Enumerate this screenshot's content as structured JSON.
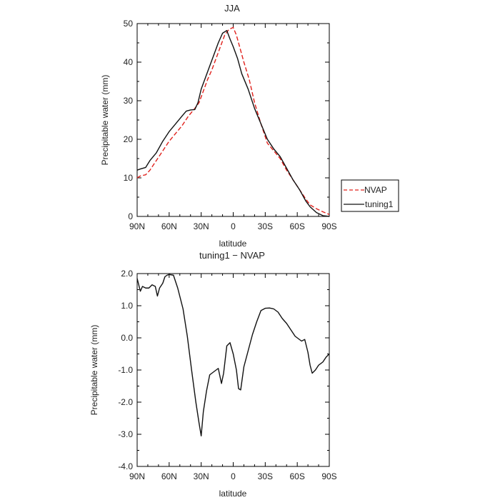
{
  "chart_data": [
    {
      "type": "line",
      "title": "JJA",
      "xlabel": "latitude",
      "ylabel": "Precipitable water (mm)",
      "xlim": [
        90,
        -90
      ],
      "ylim": [
        0,
        50
      ],
      "x_ticks": [
        90,
        60,
        30,
        0,
        -30,
        -60,
        -90
      ],
      "x_tick_labels": [
        "90N",
        "60N",
        "30N",
        "0",
        "30S",
        "60S",
        "90S"
      ],
      "y_ticks": [
        0,
        10,
        20,
        30,
        40,
        50
      ],
      "y_tick_labels": [
        "0",
        "10",
        "20",
        "30",
        "40",
        "50"
      ],
      "legend_position": "right",
      "grid": false,
      "series": [
        {
          "name": "NVAP",
          "color": "#e0201b",
          "dash": "dashed",
          "points": [
            [
              90,
              10
            ],
            [
              87,
              10.5
            ],
            [
              82,
              10.8
            ],
            [
              78,
              12
            ],
            [
              72,
              14.5
            ],
            [
              66,
              17
            ],
            [
              60,
              19.5
            ],
            [
              54,
              21.5
            ],
            [
              48,
              23.5
            ],
            [
              42,
              26
            ],
            [
              36,
              28
            ],
            [
              32,
              29.5
            ],
            [
              28,
              32.5
            ],
            [
              24,
              35.5
            ],
            [
              20,
              38
            ],
            [
              16,
              41
            ],
            [
              12,
              44
            ],
            [
              8,
              47
            ],
            [
              4,
              48.5
            ],
            [
              0,
              49
            ],
            [
              -3,
              47
            ],
            [
              -6,
              44
            ],
            [
              -10,
              40
            ],
            [
              -15,
              35.5
            ],
            [
              -20,
              29.5
            ],
            [
              -26,
              24
            ],
            [
              -32,
              19
            ],
            [
              -38,
              17
            ],
            [
              -44,
              15
            ],
            [
              -50,
              12
            ],
            [
              -56,
              9.5
            ],
            [
              -62,
              7
            ],
            [
              -68,
              4.5
            ],
            [
              -72,
              3
            ],
            [
              -78,
              2
            ],
            [
              -84,
              1.2
            ],
            [
              -90,
              0.5
            ]
          ]
        },
        {
          "name": "tuning1",
          "color": "#111111",
          "dash": "solid",
          "points": [
            [
              90,
              12
            ],
            [
              87,
              12.3
            ],
            [
              82,
              12.7
            ],
            [
              78,
              14.5
            ],
            [
              72,
              16.5
            ],
            [
              66,
              19.5
            ],
            [
              60,
              22
            ],
            [
              54,
              24
            ],
            [
              48,
              26
            ],
            [
              44,
              27.3
            ],
            [
              40,
              27.6
            ],
            [
              36,
              27.7
            ],
            [
              33,
              29.5
            ],
            [
              30,
              33
            ],
            [
              26,
              36
            ],
            [
              22,
              39
            ],
            [
              18,
              42
            ],
            [
              14,
              45
            ],
            [
              10,
              47.5
            ],
            [
              6,
              48.2
            ],
            [
              3,
              46
            ],
            [
              0,
              44
            ],
            [
              -4,
              41
            ],
            [
              -8,
              37
            ],
            [
              -14,
              33
            ],
            [
              -20,
              28
            ],
            [
              -26,
              24
            ],
            [
              -32,
              20
            ],
            [
              -38,
              17.5
            ],
            [
              -44,
              15.5
            ],
            [
              -50,
              12.5
            ],
            [
              -56,
              9.5
            ],
            [
              -62,
              7
            ],
            [
              -68,
              4
            ],
            [
              -72,
              2.5
            ],
            [
              -78,
              1
            ],
            [
              -84,
              0.2
            ],
            [
              -90,
              0
            ]
          ]
        }
      ]
    },
    {
      "type": "line",
      "title": "tuning1 − NVAP",
      "xlabel": "latitude",
      "ylabel": "Precipitable water (mm)",
      "xlim": [
        90,
        -90
      ],
      "ylim": [
        -4,
        2
      ],
      "x_ticks": [
        90,
        60,
        30,
        0,
        -30,
        -60,
        -90
      ],
      "x_tick_labels": [
        "90N",
        "60N",
        "30N",
        "0",
        "30S",
        "60S",
        "90S"
      ],
      "y_ticks": [
        2,
        1,
        0,
        -1,
        -2,
        -3,
        -4
      ],
      "y_tick_labels": [
        "2.0",
        "1.0",
        "0.0",
        "-1.0",
        "-2.0",
        "-3.0",
        "-4.0"
      ],
      "grid": false,
      "series": [
        {
          "color": "#111111",
          "dash": "solid",
          "points": [
            [
              90,
              1.85
            ],
            [
              87,
              1.45
            ],
            [
              85,
              1.6
            ],
            [
              82,
              1.55
            ],
            [
              79,
              1.55
            ],
            [
              76,
              1.65
            ],
            [
              73,
              1.6
            ],
            [
              71,
              1.3
            ],
            [
              69,
              1.55
            ],
            [
              66,
              1.7
            ],
            [
              64,
              1.9
            ],
            [
              62,
              1.95
            ],
            [
              60,
              1.97
            ],
            [
              56,
              1.95
            ],
            [
              52,
              1.55
            ],
            [
              47,
              0.9
            ],
            [
              43,
              0.05
            ],
            [
              39,
              -1.0
            ],
            [
              35,
              -2.0
            ],
            [
              32,
              -2.65
            ],
            [
              30,
              -3.05
            ],
            [
              28,
              -2.3
            ],
            [
              25,
              -1.65
            ],
            [
              22,
              -1.15
            ],
            [
              18,
              -1.05
            ],
            [
              14,
              -0.95
            ],
            [
              11,
              -1.42
            ],
            [
              9,
              -1.1
            ],
            [
              6,
              -0.25
            ],
            [
              3,
              -0.15
            ],
            [
              0,
              -0.5
            ],
            [
              -3,
              -1.0
            ],
            [
              -5,
              -1.58
            ],
            [
              -7,
              -1.62
            ],
            [
              -10,
              -0.9
            ],
            [
              -14,
              -0.4
            ],
            [
              -18,
              0.1
            ],
            [
              -22,
              0.5
            ],
            [
              -26,
              0.85
            ],
            [
              -30,
              0.92
            ],
            [
              -34,
              0.93
            ],
            [
              -38,
              0.9
            ],
            [
              -42,
              0.8
            ],
            [
              -46,
              0.6
            ],
            [
              -50,
              0.45
            ],
            [
              -54,
              0.25
            ],
            [
              -58,
              0.05
            ],
            [
              -62,
              -0.05
            ],
            [
              -64,
              -0.1
            ],
            [
              -67,
              -0.05
            ],
            [
              -70,
              -0.45
            ],
            [
              -72,
              -0.85
            ],
            [
              -74,
              -1.1
            ],
            [
              -77,
              -1.0
            ],
            [
              -80,
              -0.85
            ],
            [
              -84,
              -0.75
            ],
            [
              -87,
              -0.6
            ],
            [
              -90,
              -0.5
            ]
          ]
        }
      ]
    }
  ]
}
